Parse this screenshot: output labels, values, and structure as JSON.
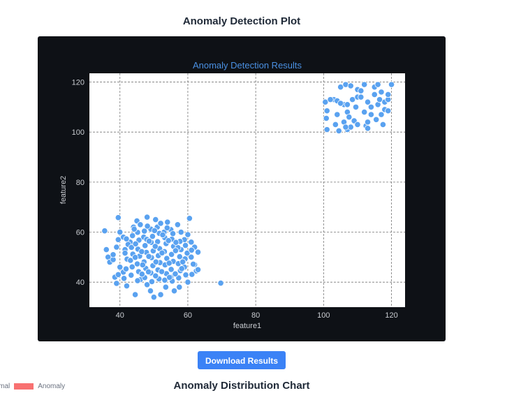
{
  "page_title": "Anomaly Detection Plot",
  "download_button": "Download Results",
  "distribution_title": "Anomaly Distribution Chart",
  "legend": [
    {
      "label": "Normal"
    },
    {
      "label": "Anomaly",
      "color": "#f87171"
    }
  ],
  "colors": {
    "panel": "#0e1116",
    "marker": "#5aa2f0",
    "title": "#4a90e2",
    "button": "#3b82f6"
  },
  "chart_data": {
    "type": "scatter",
    "title": "Anomaly Detection Results",
    "xlabel": "feature1",
    "ylabel": "feature2",
    "xlim": [
      31,
      124
    ],
    "ylim": [
      30,
      123.5
    ],
    "xticks": [
      40,
      60,
      80,
      100,
      120
    ],
    "yticks": [
      40,
      60,
      80,
      100,
      120
    ],
    "grid": true,
    "points": [
      [
        100.5,
        112
      ],
      [
        101,
        108.5
      ],
      [
        101,
        101
      ],
      [
        100.8,
        105.5
      ],
      [
        103,
        113
      ],
      [
        103.5,
        103
      ],
      [
        104,
        112.5
      ],
      [
        104.5,
        100.5
      ],
      [
        105,
        118
      ],
      [
        106,
        111
      ],
      [
        106,
        104
      ],
      [
        106.5,
        119
      ],
      [
        107,
        108
      ],
      [
        107,
        111
      ],
      [
        107.5,
        106
      ],
      [
        107,
        101
      ],
      [
        108,
        118.5
      ],
      [
        108,
        102
      ],
      [
        108.5,
        113
      ],
      [
        109,
        104.5
      ],
      [
        109.5,
        110
      ],
      [
        110,
        117
      ],
      [
        110,
        114
      ],
      [
        111,
        116.5
      ],
      [
        111,
        114
      ],
      [
        112,
        108
      ],
      [
        112.5,
        102.5
      ],
      [
        113,
        104
      ],
      [
        113,
        112
      ],
      [
        114,
        110
      ],
      [
        114,
        107
      ],
      [
        115,
        118
      ],
      [
        115,
        115
      ],
      [
        115.5,
        105
      ],
      [
        116,
        119
      ],
      [
        116,
        111
      ],
      [
        116.5,
        113
      ],
      [
        117,
        116
      ],
      [
        117,
        107
      ],
      [
        117.5,
        103
      ],
      [
        118,
        109
      ],
      [
        118,
        112
      ],
      [
        119,
        113
      ],
      [
        119,
        108.5
      ],
      [
        120,
        119
      ],
      [
        102,
        113
      ],
      [
        104,
        107
      ],
      [
        105,
        111.5
      ],
      [
        110,
        103
      ],
      [
        112,
        119
      ],
      [
        119,
        115
      ],
      [
        113,
        101.5
      ],
      [
        106.5,
        102
      ],
      [
        69.7,
        39.6
      ],
      [
        35.5,
        60.5
      ],
      [
        36,
        53
      ],
      [
        36.5,
        50
      ],
      [
        37,
        48
      ],
      [
        38,
        49
      ],
      [
        38.5,
        42
      ],
      [
        39,
        39.5
      ],
      [
        39.5,
        65.8
      ],
      [
        39.5,
        57
      ],
      [
        40,
        60
      ],
      [
        41,
        44
      ],
      [
        41.5,
        53
      ],
      [
        42,
        38.5
      ],
      [
        43,
        56
      ],
      [
        44,
        62
      ],
      [
        44.5,
        35
      ],
      [
        45,
        64.5
      ],
      [
        46,
        41
      ],
      [
        47,
        58
      ],
      [
        48,
        66
      ],
      [
        48,
        39
      ],
      [
        49,
        36.5
      ],
      [
        50,
        34
      ],
      [
        50.5,
        65
      ],
      [
        51,
        62
      ],
      [
        52,
        35
      ],
      [
        53,
        60
      ],
      [
        53.5,
        38
      ],
      [
        54,
        64
      ],
      [
        55,
        42
      ],
      [
        56,
        36.5
      ],
      [
        57,
        63
      ],
      [
        57.5,
        38
      ],
      [
        58,
        60
      ],
      [
        59,
        57
      ],
      [
        60,
        40
      ],
      [
        60.5,
        65.5
      ],
      [
        61,
        50
      ],
      [
        62,
        47
      ],
      [
        62.5,
        44.5
      ],
      [
        63,
        45
      ],
      [
        63,
        52
      ],
      [
        61,
        56
      ],
      [
        59,
        46
      ],
      [
        58,
        53
      ],
      [
        39,
        54
      ],
      [
        38,
        51
      ],
      [
        40,
        46
      ],
      [
        62,
        54
      ],
      [
        60,
        59
      ],
      [
        46,
        63
      ],
      [
        52,
        63.5
      ],
      [
        55,
        61
      ],
      [
        41,
        58
      ],
      [
        39.5,
        43
      ],
      [
        41.2,
        41.5
      ],
      [
        41.8,
        45.3
      ],
      [
        42.1,
        49.2
      ],
      [
        41.5,
        51.6
      ],
      [
        42.4,
        55.1
      ],
      [
        41.9,
        57.3
      ],
      [
        43.3,
        42.8
      ],
      [
        43.6,
        46.1
      ],
      [
        43.1,
        48.7
      ],
      [
        43.8,
        51.2
      ],
      [
        43.4,
        53.9
      ],
      [
        43.7,
        58.6
      ],
      [
        45.2,
        40.6
      ],
      [
        45.5,
        44.2
      ],
      [
        45.1,
        47.3
      ],
      [
        45.8,
        50.4
      ],
      [
        45.3,
        53.2
      ],
      [
        45.6,
        56.8
      ],
      [
        45.2,
        59.9
      ],
      [
        47.3,
        41.8
      ],
      [
        47.6,
        45.5
      ],
      [
        47.1,
        48.1
      ],
      [
        47.8,
        51.9
      ],
      [
        47.4,
        54.6
      ],
      [
        47.9,
        57.1
      ],
      [
        47.2,
        60.4
      ],
      [
        49.4,
        40.2
      ],
      [
        49.1,
        43.7
      ],
      [
        49.7,
        46.6
      ],
      [
        49.3,
        49.8
      ],
      [
        49.8,
        52.5
      ],
      [
        49.2,
        55.9
      ],
      [
        49.6,
        58.3
      ],
      [
        49.1,
        61.2
      ],
      [
        51.5,
        41.3
      ],
      [
        51.2,
        44.9
      ],
      [
        51.8,
        47.8
      ],
      [
        51.3,
        50.6
      ],
      [
        51.7,
        53.4
      ],
      [
        51.1,
        56.2
      ],
      [
        51.6,
        59.5
      ],
      [
        53.2,
        40.8
      ],
      [
        53.7,
        43.4
      ],
      [
        53.3,
        46.9
      ],
      [
        53.8,
        49.5
      ],
      [
        53.1,
        52.2
      ],
      [
        53.6,
        55.4
      ],
      [
        53.2,
        57.8
      ],
      [
        55.4,
        40.4
      ],
      [
        55.1,
        45.1
      ],
      [
        55.7,
        48.3
      ],
      [
        55.2,
        51.1
      ],
      [
        55.8,
        54.3
      ],
      [
        55.3,
        57.2
      ],
      [
        55.6,
        59.4
      ],
      [
        57.3,
        41.7
      ],
      [
        57.8,
        44.6
      ],
      [
        57.2,
        47.4
      ],
      [
        57.6,
        50.2
      ],
      [
        57.1,
        53.8
      ],
      [
        57.7,
        56.3
      ],
      [
        59.4,
        42.9
      ],
      [
        59.2,
        49.3
      ],
      [
        59.8,
        51.6
      ],
      [
        59.3,
        54.7
      ],
      [
        61.2,
        43.1
      ],
      [
        61.6,
        47.2
      ],
      [
        61.1,
        52.8
      ],
      [
        44.5,
        49.9
      ],
      [
        46.7,
        46.9
      ],
      [
        48.5,
        50.3
      ],
      [
        50.6,
        48.1
      ],
      [
        52.4,
        51.7
      ],
      [
        54.5,
        47.6
      ],
      [
        56.4,
        52.6
      ],
      [
        58.5,
        48.1
      ],
      [
        44.6,
        55.3
      ],
      [
        46.4,
        52.2
      ],
      [
        48.6,
        56.4
      ],
      [
        50.4,
        54.3
      ],
      [
        52.6,
        58.9
      ],
      [
        54.3,
        56.6
      ],
      [
        56.5,
        55.9
      ],
      [
        46.5,
        43.2
      ],
      [
        48.4,
        44.1
      ],
      [
        50.5,
        42.5
      ],
      [
        52.3,
        44.2
      ],
      [
        54.6,
        41.9
      ],
      [
        56.3,
        43.3
      ],
      [
        58.2,
        45.4
      ],
      [
        50.2,
        60.6
      ],
      [
        48.1,
        62.4
      ],
      [
        53.9,
        61.7
      ],
      [
        44.2,
        61.2
      ]
    ]
  }
}
